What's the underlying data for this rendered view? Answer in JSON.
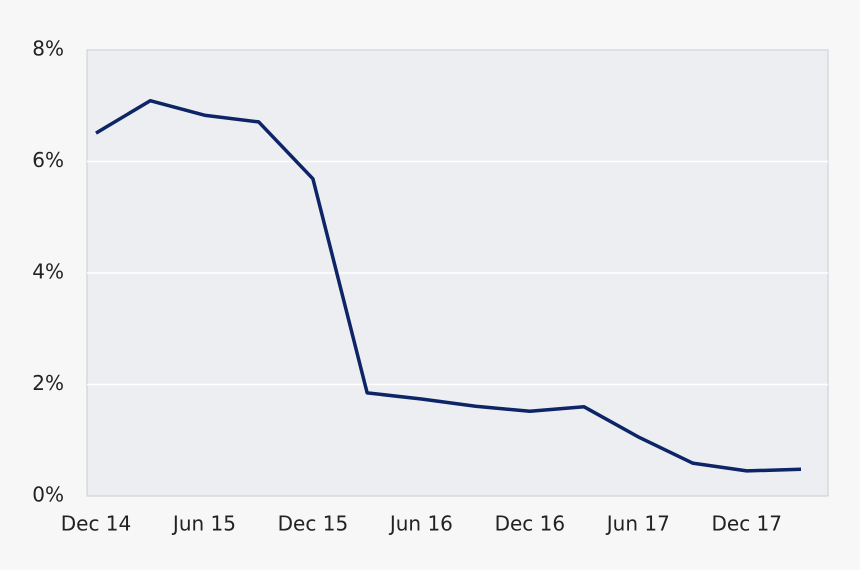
{
  "chart_data": {
    "type": "line",
    "categories": [
      "Dec 14",
      null,
      "Jun 15",
      null,
      "Dec 15",
      null,
      "Jun 16",
      null,
      "Dec 16",
      null,
      "Jun 17",
      null,
      "Dec 17",
      null
    ],
    "series": [
      {
        "color": "#0d2466",
        "values": [
          6.51,
          7.09,
          6.83,
          6.71,
          5.69,
          1.85,
          1.74,
          1.61,
          1.52,
          1.6,
          1.06,
          0.59,
          0.45,
          0.48
        ]
      }
    ],
    "ylim": [
      0,
      8
    ],
    "yticks": [
      {
        "value": 0,
        "label": "0%"
      },
      {
        "value": 2,
        "label": "2%"
      },
      {
        "value": 4,
        "label": "4%"
      },
      {
        "value": 6,
        "label": "6%"
      },
      {
        "value": 8,
        "label": "8%"
      }
    ],
    "grid": true
  }
}
